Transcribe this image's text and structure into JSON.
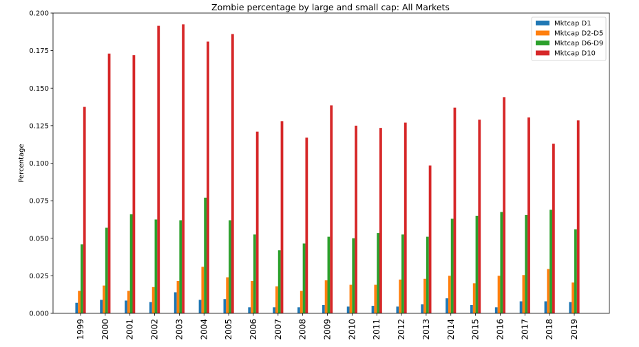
{
  "chart_data": {
    "type": "bar",
    "title": "Zombie percentage by large and small cap: All Markets",
    "xlabel": "",
    "ylabel": "Percentage",
    "ylim": [
      0,
      0.2
    ],
    "yticks": [
      "0.000",
      "0.025",
      "0.050",
      "0.075",
      "0.100",
      "0.125",
      "0.150",
      "0.175",
      "0.200"
    ],
    "categories": [
      "1999",
      "2000",
      "2001",
      "2002",
      "2003",
      "2004",
      "2005",
      "2006",
      "2007",
      "2008",
      "2009",
      "2010",
      "2011",
      "2012",
      "2013",
      "2014",
      "2015",
      "2016",
      "2017",
      "2018",
      "2019"
    ],
    "legend_position": "top-right",
    "series": [
      {
        "name": "Mktcap D1",
        "color": "#1f77b4",
        "values": [
          0.007,
          0.009,
          0.0085,
          0.0075,
          0.014,
          0.009,
          0.0095,
          0.004,
          0.004,
          0.004,
          0.0055,
          0.0045,
          0.005,
          0.0045,
          0.006,
          0.01,
          0.0055,
          0.004,
          0.008,
          0.008,
          0.0075
        ]
      },
      {
        "name": "Mktcap D2-D5",
        "color": "#ff7f0e",
        "values": [
          0.015,
          0.0185,
          0.015,
          0.0175,
          0.0215,
          0.031,
          0.024,
          0.0215,
          0.018,
          0.015,
          0.022,
          0.019,
          0.019,
          0.0225,
          0.023,
          0.025,
          0.02,
          0.025,
          0.0255,
          0.0295,
          0.0205
        ]
      },
      {
        "name": "Mktcap D6-D9",
        "color": "#2ca02c",
        "values": [
          0.046,
          0.057,
          0.066,
          0.0625,
          0.062,
          0.077,
          0.062,
          0.0525,
          0.042,
          0.0465,
          0.051,
          0.05,
          0.0535,
          0.0525,
          0.051,
          0.063,
          0.065,
          0.0675,
          0.0655,
          0.069,
          0.056
        ]
      },
      {
        "name": "Mktcap D10",
        "color": "#d62728",
        "values": [
          0.1375,
          0.173,
          0.172,
          0.1915,
          0.1925,
          0.181,
          0.186,
          0.121,
          0.128,
          0.117,
          0.1385,
          0.125,
          0.1235,
          0.127,
          0.0985,
          0.137,
          0.129,
          0.144,
          0.1305,
          0.113,
          0.1285
        ]
      }
    ]
  }
}
